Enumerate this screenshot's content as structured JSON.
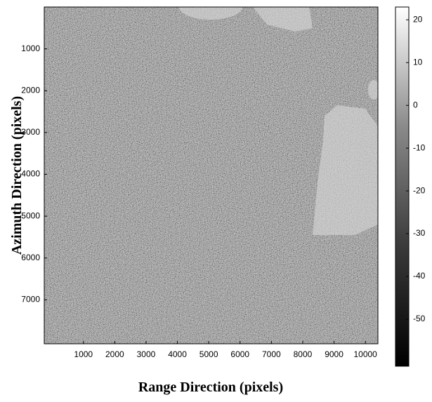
{
  "chart_data": {
    "type": "image",
    "x_label": "Range Direction (pixels)",
    "y_label": "Azimuth Direction (pixels)",
    "xlim": [
      -250,
      10400
    ],
    "xticks": [
      1000,
      2000,
      3000,
      4000,
      5000,
      6000,
      7000,
      8000,
      9000,
      10000
    ],
    "ylim": [
      8050,
      0
    ],
    "yticks": [
      1000,
      2000,
      3000,
      4000,
      5000,
      6000,
      7000
    ],
    "clim": [
      -61,
      23
    ],
    "cticks": [
      -50,
      -40,
      -30,
      -20,
      -10,
      0,
      10,
      20
    ],
    "colormap": [
      "#000000",
      "#3a3a3a",
      "#8a8a8a",
      "#ffffff"
    ]
  }
}
